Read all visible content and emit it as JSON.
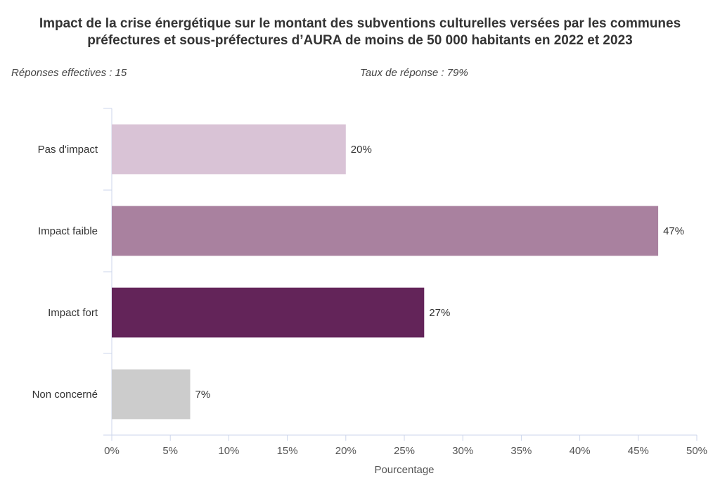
{
  "chart_data": {
    "type": "bar",
    "orientation": "horizontal",
    "title": [
      "Impact de la crise énergétique sur le montant des subventions culturelles versées par les communes",
      "préfectures et sous-préfectures d’AURA de moins de 50 000 habitants en 2022 et 2023"
    ],
    "subtitles": [
      "Réponses effectives : 15",
      "Taux de réponse : 79%"
    ],
    "categories": [
      "Pas d'impact",
      "Impact faible",
      "Impact fort",
      "Non concerné"
    ],
    "values": [
      20,
      46.7,
      26.7,
      6.7
    ],
    "data_labels": [
      "20%",
      "47%",
      "27%",
      "7%"
    ],
    "colors": [
      "#d9c3d6",
      "#a9819f",
      "#632459",
      "#cccccc"
    ],
    "xlabel": "Pourcentage",
    "xlim": [
      0,
      50
    ],
    "xticks": [
      0,
      5,
      10,
      15,
      20,
      25,
      30,
      35,
      40,
      45,
      50
    ],
    "xtick_labels": [
      "0%",
      "5%",
      "10%",
      "15%",
      "20%",
      "25%",
      "30%",
      "35%",
      "40%",
      "45%",
      "50%"
    ],
    "grid": false,
    "legend": "none"
  }
}
